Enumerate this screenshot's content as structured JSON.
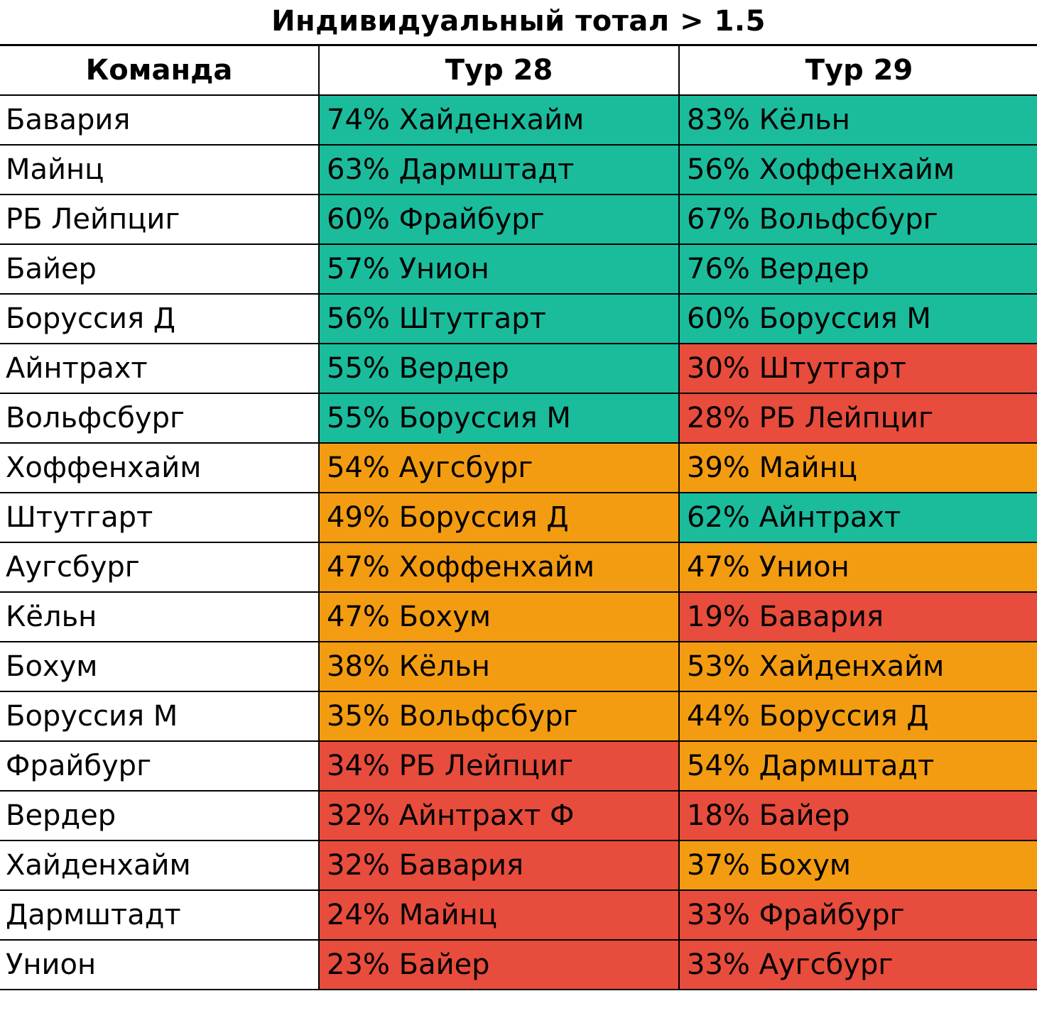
{
  "title": "Индивидуальный тотал > 1.5",
  "headers": {
    "team": "Команда",
    "round28": "Тур 28",
    "round29": "Тур 29"
  },
  "colors": {
    "green": "#1abc9c",
    "orange": "#f39c12",
    "red": "#e74c3c"
  },
  "rows": [
    {
      "team": "Бавария",
      "r28": "74% Хайденхайм",
      "r28_color": "green",
      "r29": "83% Кёльн",
      "r29_color": "green"
    },
    {
      "team": "Майнц",
      "r28": "63% Дармштадт",
      "r28_color": "green",
      "r29": "56% Хоффенхайм",
      "r29_color": "green"
    },
    {
      "team": "РБ Лейпциг",
      "r28": "60% Фрайбург",
      "r28_color": "green",
      "r29": "67% Вольфсбург",
      "r29_color": "green"
    },
    {
      "team": "Байер",
      "r28": "57% Унион",
      "r28_color": "green",
      "r29": "76% Вердер",
      "r29_color": "green"
    },
    {
      "team": "Боруссия Д",
      "r28": "56% Штутгарт",
      "r28_color": "green",
      "r29": "60% Боруссия М",
      "r29_color": "green"
    },
    {
      "team": "Айнтрахт",
      "r28": "55% Вердер",
      "r28_color": "green",
      "r29": "30% Штутгарт",
      "r29_color": "red"
    },
    {
      "team": "Вольфсбург",
      "r28": "55% Боруссия М",
      "r28_color": "green",
      "r29": "28% РБ Лейпциг",
      "r29_color": "red"
    },
    {
      "team": "Хоффенхайм",
      "r28": "54% Аугсбург",
      "r28_color": "orange",
      "r29": "39% Майнц",
      "r29_color": "orange"
    },
    {
      "team": "Штутгарт",
      "r28": "49% Боруссия Д",
      "r28_color": "orange",
      "r29": "62% Айнтрахт",
      "r29_color": "green"
    },
    {
      "team": "Аугсбург",
      "r28": "47% Хоффенхайм",
      "r28_color": "orange",
      "r29": "47% Унион",
      "r29_color": "orange"
    },
    {
      "team": "Кёльн",
      "r28": "47% Бохум",
      "r28_color": "orange",
      "r29": "19% Бавария",
      "r29_color": "red"
    },
    {
      "team": "Бохум",
      "r28": "38% Кёльн",
      "r28_color": "orange",
      "r29": "53% Хайденхайм",
      "r29_color": "orange"
    },
    {
      "team": "Боруссия М",
      "r28": "35% Вольфсбург",
      "r28_color": "orange",
      "r29": "44% Боруссия Д",
      "r29_color": "orange"
    },
    {
      "team": "Фрайбург",
      "r28": "34% РБ Лейпциг",
      "r28_color": "red",
      "r29": "54% Дармштадт",
      "r29_color": "orange"
    },
    {
      "team": "Вердер",
      "r28": "32% Айнтрахт Ф",
      "r28_color": "red",
      "r29": "18% Байер",
      "r29_color": "red"
    },
    {
      "team": "Хайденхайм",
      "r28": "32% Бавария",
      "r28_color": "red",
      "r29": "37% Бохум",
      "r29_color": "orange"
    },
    {
      "team": "Дармштадт",
      "r28": "24% Майнц",
      "r28_color": "red",
      "r29": "33% Фрайбург",
      "r29_color": "red"
    },
    {
      "team": "Унион",
      "r28": "23% Байер",
      "r28_color": "red",
      "r29": "33% Аугсбург",
      "r29_color": "red"
    }
  ]
}
